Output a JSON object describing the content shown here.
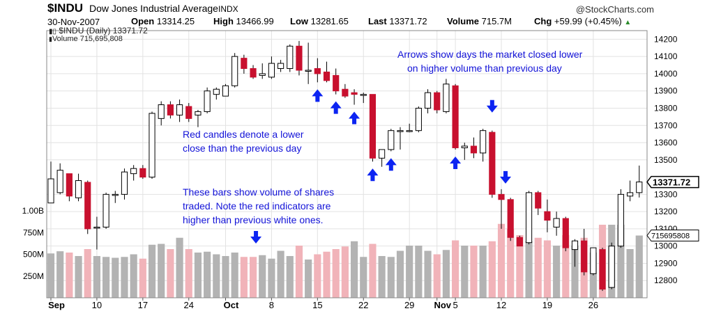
{
  "header": {
    "symbol": "$INDU",
    "name": "Dow Jones Industrial Average",
    "exchange": "INDX",
    "credit": "@StockCharts.com",
    "date": "30-Nov-2007",
    "stats": [
      {
        "label": "Open",
        "value": "13314.25"
      },
      {
        "label": "High",
        "value": "13466.99"
      },
      {
        "label": "Low",
        "value": "13281.65"
      },
      {
        "label": "Last",
        "value": "13371.72"
      },
      {
        "label": "Volume",
        "value": "715.7M"
      },
      {
        "label": "Chg",
        "value": "+59.99 (+0.45%)"
      }
    ]
  },
  "legend": {
    "price_line": "$INDU (Daily) 13371.72",
    "volume_line": "Volume 715,695,808"
  },
  "annotations": {
    "arrows_note": [
      "Arrows show days the market closed lower",
      "on higher volume than previous day"
    ],
    "red_candles_note": [
      "Red candles denote a lower",
      "close than the previous day"
    ],
    "volume_note": [
      "These bars show volume of shares",
      "traded.  Note the red indicators are",
      "higher than previous white ones."
    ]
  },
  "colors": {
    "up_candle": "#ffffff",
    "down_candle": "#c8102e",
    "volume_up": "#b3b3b3",
    "volume_down": "#f1b3b9",
    "arrow": "#0c24f2",
    "grid": "#e2e2e2"
  },
  "chart_data": {
    "type": "candlestick",
    "title": "$INDU Dow Jones Industrial Average INDX",
    "price_axis": {
      "min": 12700,
      "max": 14250,
      "ticks": [
        "14200",
        "14100",
        "14000",
        "13900",
        "13800",
        "13700",
        "13600",
        "13500",
        "13300",
        "13200",
        "13100",
        "13000",
        "12900",
        "12800"
      ]
    },
    "volume_axis": {
      "ticks": [
        "1.00B",
        "750M",
        "500M",
        "250M"
      ]
    },
    "last_price_label": "13371.72",
    "last_volume_label": "715695808",
    "x_tick_labels": [
      "Sep",
      "10",
      "17",
      "24",
      "Oct",
      "8",
      "15",
      "22",
      "29",
      "Nov",
      "5",
      "12",
      "19",
      "26"
    ],
    "x_tick_index": [
      0,
      5,
      10,
      15,
      19,
      24,
      29,
      34,
      39,
      42,
      44,
      49,
      54,
      59
    ],
    "bold_ticks": [
      "Sep",
      "Oct",
      "Nov"
    ],
    "candles": [
      {
        "o": 13250,
        "h": 13490,
        "l": 13250,
        "c": 13390,
        "v": 510
      },
      {
        "o": 13310,
        "h": 13480,
        "l": 13300,
        "c": 13440,
        "v": 535
      },
      {
        "o": 13420,
        "h": 13420,
        "l": 13260,
        "c": 13290,
        "v": 520
      },
      {
        "o": 13280,
        "h": 13420,
        "l": 13260,
        "c": 13380,
        "v": 480
      },
      {
        "o": 13370,
        "h": 13380,
        "l": 13070,
        "c": 13100,
        "v": 560
      },
      {
        "o": 13110,
        "h": 13170,
        "l": 12980,
        "c": 13110,
        "v": 480
      },
      {
        "o": 13110,
        "h": 13310,
        "l": 13100,
        "c": 13300,
        "v": 470
      },
      {
        "o": 13300,
        "h": 13320,
        "l": 13250,
        "c": 13300,
        "v": 460
      },
      {
        "o": 13300,
        "h": 13450,
        "l": 13270,
        "c": 13430,
        "v": 470
      },
      {
        "o": 13420,
        "h": 13470,
        "l": 13380,
        "c": 13450,
        "v": 500
      },
      {
        "o": 13450,
        "h": 13470,
        "l": 13390,
        "c": 13400,
        "v": 450
      },
      {
        "o": 13400,
        "h": 13780,
        "l": 13390,
        "c": 13770,
        "v": 610
      },
      {
        "o": 13740,
        "h": 13840,
        "l": 13700,
        "c": 13820,
        "v": 620
      },
      {
        "o": 13820,
        "h": 13840,
        "l": 13740,
        "c": 13760,
        "v": 560
      },
      {
        "o": 13760,
        "h": 13850,
        "l": 13720,
        "c": 13820,
        "v": 690
      },
      {
        "o": 13810,
        "h": 13830,
        "l": 13720,
        "c": 13740,
        "v": 560
      },
      {
        "o": 13760,
        "h": 13790,
        "l": 13690,
        "c": 13780,
        "v": 520
      },
      {
        "o": 13780,
        "h": 13920,
        "l": 13770,
        "c": 13900,
        "v": 530
      },
      {
        "o": 13880,
        "h": 13920,
        "l": 13850,
        "c": 13910,
        "v": 500
      },
      {
        "o": 13870,
        "h": 13940,
        "l": 13870,
        "c": 13930,
        "v": 480
      },
      {
        "o": 13930,
        "h": 14120,
        "l": 13920,
        "c": 14100,
        "v": 520
      },
      {
        "o": 14090,
        "h": 14110,
        "l": 14000,
        "c": 14030,
        "v": 470
      },
      {
        "o": 14030,
        "h": 14050,
        "l": 13970,
        "c": 13980,
        "v": 470
      },
      {
        "o": 13990,
        "h": 14060,
        "l": 13970,
        "c": 14000,
        "v": 490
      },
      {
        "o": 13980,
        "h": 14100,
        "l": 13970,
        "c": 14060,
        "v": 450
      },
      {
        "o": 14030,
        "h": 14080,
        "l": 14010,
        "c": 14060,
        "v": 540
      },
      {
        "o": 14030,
        "h": 14170,
        "l": 14010,
        "c": 14160,
        "v": 480
      },
      {
        "o": 14160,
        "h": 14190,
        "l": 13990,
        "c": 14020,
        "v": 600
      },
      {
        "o": 14020,
        "h": 14180,
        "l": 13940,
        "c": 14020,
        "v": 440
      },
      {
        "o": 14030,
        "h": 14090,
        "l": 13950,
        "c": 14000,
        "v": 500
      },
      {
        "o": 14010,
        "h": 14070,
        "l": 13950,
        "c": 13960,
        "v": 530
      },
      {
        "o": 13990,
        "h": 14030,
        "l": 13880,
        "c": 13900,
        "v": 560
      },
      {
        "o": 13910,
        "h": 13940,
        "l": 13860,
        "c": 13870,
        "v": 590
      },
      {
        "o": 13890,
        "h": 13910,
        "l": 13820,
        "c": 13880,
        "v": 650
      },
      {
        "o": 13880,
        "h": 13890,
        "l": 13830,
        "c": 13880,
        "v": 470
      },
      {
        "o": 13880,
        "h": 13880,
        "l": 13490,
        "c": 13510,
        "v": 620
      },
      {
        "o": 13510,
        "h": 13560,
        "l": 13460,
        "c": 13560,
        "v": 480
      },
      {
        "o": 13560,
        "h": 13680,
        "l": 13550,
        "c": 13670,
        "v": 470
      },
      {
        "o": 13670,
        "h": 13690,
        "l": 13560,
        "c": 13670,
        "v": 540
      },
      {
        "o": 13670,
        "h": 13710,
        "l": 13660,
        "c": 13670,
        "v": 600
      },
      {
        "o": 13670,
        "h": 13810,
        "l": 13660,
        "c": 13800,
        "v": 600
      },
      {
        "o": 13800,
        "h": 13910,
        "l": 13770,
        "c": 13890,
        "v": 540
      },
      {
        "o": 13890,
        "h": 13900,
        "l": 13770,
        "c": 13790,
        "v": 500
      },
      {
        "o": 13780,
        "h": 13970,
        "l": 13770,
        "c": 13940,
        "v": 550
      },
      {
        "o": 13930,
        "h": 13940,
        "l": 13560,
        "c": 13570,
        "v": 660
      },
      {
        "o": 13570,
        "h": 13600,
        "l": 13500,
        "c": 13580,
        "v": 600
      },
      {
        "o": 13580,
        "h": 13630,
        "l": 13510,
        "c": 13540,
        "v": 600
      },
      {
        "o": 13540,
        "h": 13680,
        "l": 13490,
        "c": 13670,
        "v": 600
      },
      {
        "o": 13660,
        "h": 13670,
        "l": 13280,
        "c": 13300,
        "v": 650
      },
      {
        "o": 13300,
        "h": 13330,
        "l": 13100,
        "c": 13270,
        "v": 850
      },
      {
        "o": 13270,
        "h": 13280,
        "l": 13030,
        "c": 13050,
        "v": 790
      },
      {
        "o": 13050,
        "h": 13060,
        "l": 13000,
        "c": 13000,
        "v": 720
      },
      {
        "o": 13020,
        "h": 13320,
        "l": 13010,
        "c": 13310,
        "v": 650
      },
      {
        "o": 13310,
        "h": 13320,
        "l": 13180,
        "c": 13220,
        "v": 690
      },
      {
        "o": 13200,
        "h": 13270,
        "l": 13080,
        "c": 13150,
        "v": 660
      },
      {
        "o": 13110,
        "h": 13200,
        "l": 13060,
        "c": 13160,
        "v": 600
      },
      {
        "o": 13160,
        "h": 13170,
        "l": 12970,
        "c": 12990,
        "v": 720
      },
      {
        "o": 12980,
        "h": 13040,
        "l": 12880,
        "c": 13030,
        "v": 600
      },
      {
        "o": 13030,
        "h": 13100,
        "l": 12830,
        "c": 12850,
        "v": 690
      },
      {
        "o": 12840,
        "h": 12990,
        "l": 12830,
        "c": 12990,
        "v": 520
      },
      {
        "o": 12980,
        "h": 12990,
        "l": 12740,
        "c": 12750,
        "v": 840
      },
      {
        "o": 12760,
        "h": 13020,
        "l": 12750,
        "c": 13000,
        "v": 840
      },
      {
        "o": 13000,
        "h": 13330,
        "l": 12990,
        "c": 13300,
        "v": 840
      },
      {
        "o": 13290,
        "h": 13380,
        "l": 13260,
        "c": 13310,
        "v": 560
      },
      {
        "o": 13310,
        "h": 13467,
        "l": 13282,
        "c": 13372,
        "v": 716
      }
    ],
    "arrows_up_index": [
      29,
      31,
      33,
      35,
      37,
      44
    ],
    "arrows_down_index": [
      48,
      49
    ],
    "arrow_down_volume_index": 22
  }
}
